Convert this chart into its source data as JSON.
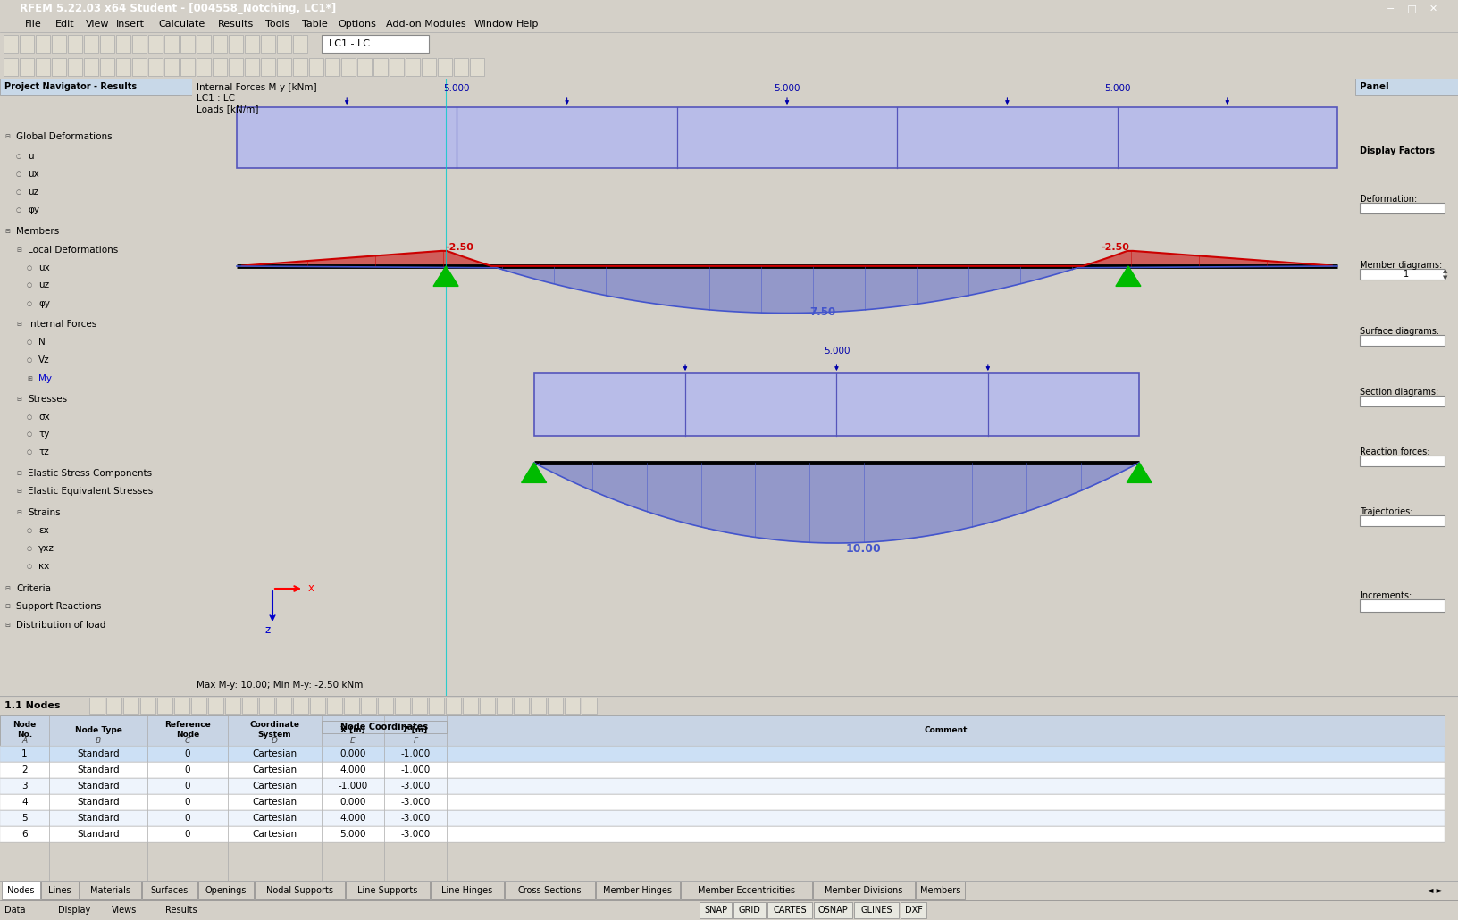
{
  "title_bar": "RFEM 5.22.03 x64 Student - [004558_Notching, LC1*]",
  "menu_items": [
    "File",
    "Edit",
    "View",
    "Insert",
    "Calculate",
    "Results",
    "Tools",
    "Table",
    "Options",
    "Add-on Modules",
    "Window",
    "Help"
  ],
  "canvas_label1": "Internal Forces M-y [kNm]",
  "canvas_label2": "LC1 : LC",
  "canvas_label3": "Loads [kN/m]",
  "beam1_load_left": "5.000",
  "beam1_load_mid": "5.000",
  "beam1_load_right": "5.000",
  "beam1_moment_left": "-2.50",
  "beam1_moment_right": "-2.50",
  "beam1_moment_mid": "7.50",
  "beam2_load": "5.000",
  "beam2_moment": "10.00",
  "max_my": "Max M-y: 10.00; Min M-y: -2.50 kNm",
  "beam_fill_color": "#b8bce8",
  "beam_outline_color": "#5555bb",
  "moment_pos_color": "#4455cc",
  "moment_neg_color": "#cc0000",
  "support_color": "#00bb00",
  "load_arrow_color": "#0000aa",
  "right_panel_title": "Panel",
  "node_data": [
    [
      1,
      "Standard",
      0,
      "Cartesian",
      0.0,
      -1.0
    ],
    [
      2,
      "Standard",
      0,
      "Cartesian",
      4.0,
      -1.0
    ],
    [
      3,
      "Standard",
      0,
      "Cartesian",
      -1.0,
      -3.0
    ],
    [
      4,
      "Standard",
      0,
      "Cartesian",
      0.0,
      -3.0
    ],
    [
      5,
      "Standard",
      0,
      "Cartesian",
      4.0,
      -3.0
    ],
    [
      6,
      "Standard",
      0,
      "Cartesian",
      5.0,
      -3.0
    ]
  ],
  "tab_names": [
    "Nodes",
    "Lines",
    "Materials",
    "Surfaces",
    "Openings",
    "Nodal Supports",
    "Line Supports",
    "Line Hinges",
    "Cross-Sections",
    "Member Hinges",
    "Member Eccentricities",
    "Member Divisions",
    "Members"
  ],
  "status_items": [
    "SNAP",
    "GRID",
    "CARTES",
    "OSNAP",
    "GLINES",
    "DXF"
  ]
}
